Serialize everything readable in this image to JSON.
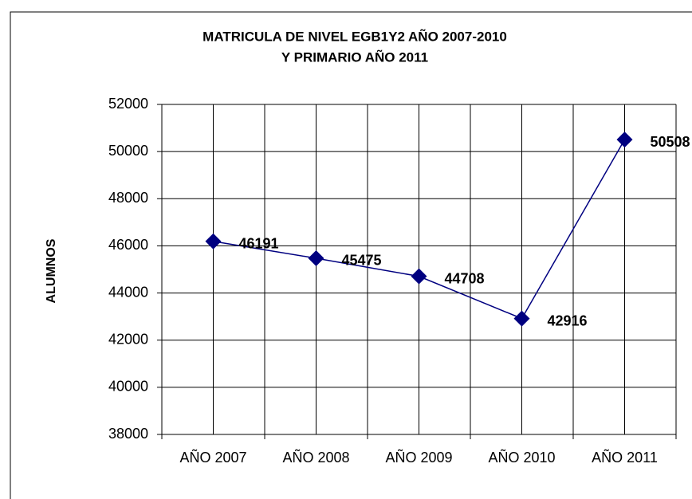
{
  "chart_data": {
    "type": "line",
    "title": [
      "MATRICULA  DE NIVEL EGB1Y2  AÑO  2007-2010",
      "Y PRIMARIO AÑO 2011"
    ],
    "y_label": "ALUMNOS",
    "categories": [
      "AÑO 2007",
      "AÑO 2008",
      "AÑO 2009",
      "AÑO 2010",
      "AÑO 2011"
    ],
    "series": [
      {
        "name": "ALUMNOS",
        "color": "#000080",
        "values": [
          46191,
          45475,
          44708,
          42916,
          50508
        ]
      }
    ],
    "ylim": [
      38000,
      52000
    ],
    "yticks": [
      38000,
      40000,
      42000,
      44000,
      46000,
      48000,
      50000,
      52000
    ],
    "grid": true
  }
}
